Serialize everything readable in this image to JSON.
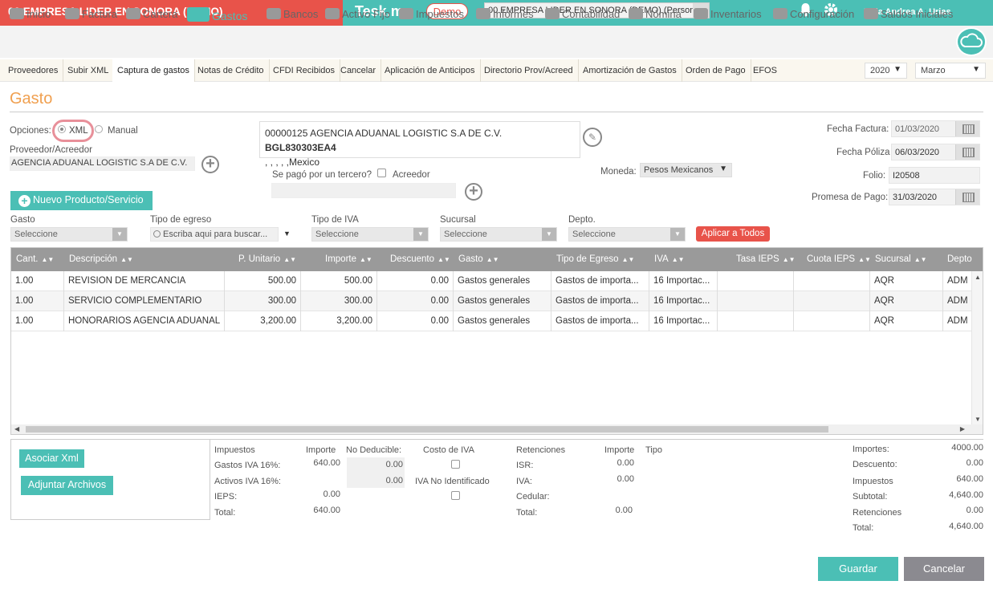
{
  "topbar": {
    "company": "00 EMPRESA LIDER EN SONORA (DEMO)",
    "brand": "Tesk.mx",
    "demo_badge": "Demo",
    "company_select": "00 EMPRESA LIDER EN SONORA (DEMO) (Persona",
    "greeting": "Hola Andrea A. Urias",
    "colors": {
      "teal": "#4bbfb5",
      "red": "#e8534a",
      "orange": "#f0a050"
    }
  },
  "mainnav": {
    "items": [
      {
        "label": "Inicio",
        "icon": "cloud-icon"
      },
      {
        "label": "Factura",
        "icon": "tag-icon"
      },
      {
        "label": "Cartera",
        "icon": "wallet-icon"
      },
      {
        "label": "Gastos",
        "icon": "cart-icon"
      },
      {
        "label": "Bancos",
        "icon": "safe-icon"
      },
      {
        "label": "Activo Fijo",
        "icon": "house-icon"
      },
      {
        "label": "Impuestos",
        "icon": "briefcase-icon"
      },
      {
        "label": "Informes",
        "icon": "document-icon"
      },
      {
        "label": "Contabilidad",
        "icon": "checklist-icon"
      },
      {
        "label": "Nómina",
        "icon": "card-icon"
      },
      {
        "label": "Inventarios",
        "icon": "dolly-icon"
      },
      {
        "label": "Configuración",
        "icon": "wrench-icon"
      },
      {
        "label": "Saldos Iniciales",
        "icon": "report-icon"
      }
    ],
    "active": "Gastos"
  },
  "subnav": {
    "items": [
      "Proveedores",
      "Subir XML",
      "Captura de gastos",
      "Notas de Crédito",
      "CFDI Recibidos",
      "Cancelar",
      "Aplicación de Anticipos",
      "Directorio Prov/Acreed",
      "Amortización de Gastos",
      "Orden de Pago",
      "EFOS"
    ],
    "active": "Captura de gastos",
    "year": "2020",
    "month": "Marzo"
  },
  "form": {
    "title": "Gasto",
    "opciones_label": "Opciones:",
    "opt_xml": "XML",
    "opt_manual": "Manual",
    "proveedor_label": "Proveedor/Acreedor",
    "proveedor_value": "AGENCIA ADUANAL LOGISTIC S.A DE C.V.",
    "prov_box_line1": "00000125 AGENCIA ADUANAL LOGISTIC S.A DE C.V.",
    "prov_box_rfc": "BGL830303EA4",
    "prov_box_line2": ", , , , ,Mexico",
    "tercero_label": "Se pagó por un tercero?",
    "acreedor_label": "Acreedor",
    "moneda_label": "Moneda:",
    "moneda_value": "Pesos Mexicanos",
    "nuevo_producto": "Nuevo Producto/Servicio",
    "fecha_factura_label": "Fecha Factura:",
    "fecha_factura": "01/03/2020",
    "fecha_poliza_label": "Fecha Póliza",
    "fecha_poliza": "06/03/2020",
    "folio_label": "Folio:",
    "folio": "I20508",
    "promesa_label": "Promesa de Pago:",
    "promesa": "31/03/2020",
    "gasto_label": "Gasto",
    "tipo_egreso_label": "Tipo de egreso",
    "tipo_iva_label": "Tipo de IVA",
    "sucursal_label": "Sucursal",
    "depto_label": "Depto.",
    "seleccione": "Seleccione",
    "search_placeholder": "Escriba aqui para buscar...",
    "aplicar": "Aplicar a Todos"
  },
  "grid": {
    "columns": [
      "Cant.",
      "Descripción",
      "P. Unitario",
      "Importe",
      "Descuento",
      "Gasto",
      "Tipo de Egreso",
      "IVA",
      "Tasa IEPS",
      "Cuota IEPS",
      "Sucursal",
      "Depto"
    ],
    "rows": [
      [
        "1.00",
        "REVISION DE MERCANCIA",
        "500.00",
        "500.00",
        "0.00",
        "Gastos generales",
        "Gastos de importa...",
        "16 Importac...",
        "",
        "",
        "AQR",
        "ADM"
      ],
      [
        "1.00",
        "SERVICIO COMPLEMENTARIO",
        "300.00",
        "300.00",
        "0.00",
        "Gastos generales",
        "Gastos de importa...",
        "16 Importac...",
        "",
        "",
        "AQR",
        "ADM"
      ],
      [
        "1.00",
        "HONORARIOS AGENCIA ADUANAL",
        "3,200.00",
        "3,200.00",
        "0.00",
        "Gastos generales",
        "Gastos de importa...",
        "16 Importac...",
        "",
        "",
        "AQR",
        "ADM"
      ]
    ]
  },
  "footer": {
    "asociar_xml": "Asociar Xml",
    "adjuntar": "Adjuntar Archivos",
    "impuestos": {
      "h_impuestos": "Impuestos",
      "h_importe": "Importe",
      "h_no_deducible": "No Deducible:",
      "h_costo_iva": "Costo de IVA",
      "gastos_iva_label": "Gastos IVA 16%:",
      "gastos_iva": "640.00",
      "gastos_iva_nd": "0.00",
      "activos_iva_label": "Activos IVA 16%:",
      "activos_iva_nd": "0.00",
      "iva_no_ident": "IVA No Identificado",
      "ieps_label": "IEPS:",
      "ieps": "0.00",
      "total_label": "Total:",
      "total": "640.00"
    },
    "retenciones": {
      "h_retenciones": "Retenciones",
      "h_importe": "Importe",
      "h_tipo": "Tipo",
      "isr_label": "ISR:",
      "isr": "0.00",
      "iva_label": "IVA:",
      "iva": "0.00",
      "cedular_label": "Cedular:",
      "total_label": "Total:",
      "total": "0.00"
    },
    "totales": {
      "importes_label": "Importes:",
      "importes": "4000.00",
      "descuento_label": "Descuento:",
      "descuento": "0.00",
      "impuestos_label": "Impuestos",
      "impuestos": "640.00",
      "subtotal_label": "Subtotal:",
      "subtotal": "4,640.00",
      "retenciones_label": "Retenciones",
      "retenciones": "0.00",
      "total_label": "Total:",
      "total": "4,640.00"
    },
    "guardar": "Guardar",
    "cancelar": "Cancelar"
  }
}
